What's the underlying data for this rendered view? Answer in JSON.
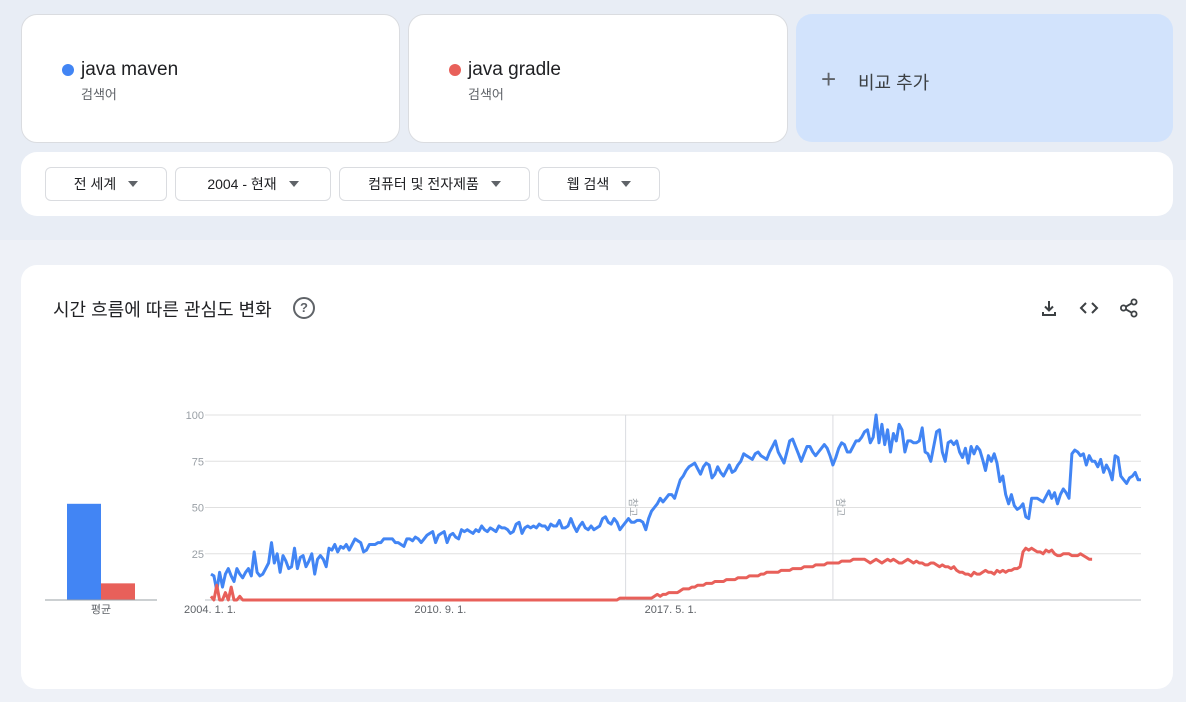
{
  "terms": [
    {
      "name": "java maven",
      "type": "검색어",
      "color": "#4285f4"
    },
    {
      "name": "java gradle",
      "type": "검색어",
      "color": "#e8605a"
    }
  ],
  "add_compare": {
    "icon": "plus-icon",
    "label": "비교 추가"
  },
  "filters": [
    {
      "label": "전 세계"
    },
    {
      "label": "2004 - 현재"
    },
    {
      "label": "컴퓨터 및 전자제품"
    },
    {
      "label": "웹 검색"
    }
  ],
  "chart_section": {
    "title": "시간 흐름에 따른 관심도 변화",
    "icons": [
      "help-icon",
      "download-icon",
      "embed-icon",
      "share-icon"
    ]
  },
  "chart_data": {
    "type": "line",
    "ylim": [
      0,
      100
    ],
    "yticks": [
      "100",
      "75",
      "50",
      "25"
    ],
    "xtick_labels": [
      "2004. 1. 1.",
      "2010. 9. 1.",
      "2017. 5. 1."
    ],
    "note_label": "참고",
    "note_dates": [
      "2016-01",
      "2022-01"
    ],
    "average": {
      "label": "평균",
      "values": [
        52,
        9
      ]
    },
    "series": [
      {
        "name": "java maven",
        "color": "#4285f4",
        "start": "2004-01",
        "values": [
          14,
          13,
          5,
          15,
          7,
          14,
          17,
          13,
          10,
          17,
          14,
          12,
          15,
          17,
          13,
          26,
          15,
          13,
          14,
          17,
          20,
          31,
          20,
          25,
          15,
          24,
          21,
          17,
          18,
          28,
          17,
          23,
          24,
          18,
          21,
          25,
          14,
          22,
          24,
          22,
          18,
          28,
          27,
          30,
          26,
          29,
          28,
          30,
          27,
          30,
          33,
          32,
          31,
          26,
          27,
          30,
          30,
          30,
          31,
          31,
          33,
          33,
          33,
          33,
          31,
          31,
          30,
          29,
          33,
          33,
          32,
          34,
          33,
          31,
          33,
          35,
          36,
          37,
          31,
          35,
          36,
          37,
          31,
          35,
          36,
          34,
          33,
          38,
          37,
          38,
          37,
          36,
          38,
          37,
          40,
          38,
          37,
          39,
          38,
          37,
          40,
          39,
          39,
          38,
          36,
          37,
          41,
          42,
          36,
          39,
          40,
          39,
          40,
          39,
          41,
          40,
          40,
          38,
          41,
          40,
          40,
          43,
          39,
          39,
          40,
          44,
          40,
          37,
          40,
          42,
          39,
          38,
          40,
          38,
          39,
          40,
          44,
          45,
          42,
          41,
          44,
          42,
          38,
          40,
          42,
          44,
          42,
          42,
          43,
          43,
          42,
          38,
          44,
          48,
          50,
          52,
          55,
          53,
          55,
          57,
          57,
          55,
          60,
          65,
          67,
          70,
          72,
          73,
          74,
          71,
          68,
          72,
          74,
          73,
          66,
          68,
          72,
          69,
          67,
          70,
          73,
          69,
          70,
          73,
          75,
          79,
          78,
          77,
          76,
          79,
          80,
          78,
          77,
          76,
          80,
          83,
          86,
          80,
          77,
          74,
          80,
          86,
          87,
          83,
          79,
          75,
          79,
          83,
          83,
          80,
          78,
          80,
          82,
          84,
          82,
          78,
          73,
          77,
          82,
          85,
          84,
          80,
          80,
          83,
          86,
          86,
          88,
          91,
          92,
          85,
          88,
          100,
          85,
          95,
          84,
          92,
          80,
          90,
          86,
          95,
          92,
          80,
          86,
          86,
          85,
          85,
          86,
          93,
          80,
          79,
          75,
          83,
          91,
          92,
          80,
          75,
          85,
          86,
          84,
          86,
          80,
          77,
          82,
          74,
          83,
          79,
          83,
          81,
          76,
          70,
          78,
          75,
          79,
          74,
          64,
          67,
          57,
          52,
          57,
          51,
          49,
          50,
          52,
          45,
          44,
          55,
          55,
          55,
          54,
          53,
          56,
          59,
          55,
          58,
          52,
          57,
          60,
          58,
          55,
          79,
          81,
          80,
          78,
          79,
          73,
          78,
          75,
          75,
          72,
          76,
          69,
          73,
          70,
          65,
          78,
          77,
          67,
          65,
          63,
          66,
          67,
          69,
          65,
          65
        ]
      },
      {
        "name": "java gradle",
        "color": "#e8605a",
        "start": "2004-01",
        "values": [
          2,
          0,
          8,
          0,
          0,
          4,
          0,
          7,
          0,
          0,
          2,
          0,
          0,
          0,
          0,
          0,
          0,
          0,
          0,
          0,
          0,
          0,
          0,
          0,
          0,
          0,
          0,
          0,
          0,
          0,
          0,
          0,
          0,
          0,
          0,
          0,
          0,
          0,
          0,
          0,
          0,
          0,
          0,
          0,
          0,
          0,
          0,
          0,
          0,
          0,
          0,
          0,
          0,
          0,
          0,
          0,
          0,
          0,
          0,
          0,
          0,
          0,
          0,
          0,
          0,
          0,
          0,
          0,
          0,
          0,
          0,
          0,
          0,
          0,
          0,
          0,
          0,
          0,
          0,
          0,
          0,
          0,
          0,
          0,
          0,
          0,
          0,
          0,
          0,
          0,
          0,
          0,
          0,
          0,
          0,
          0,
          0,
          0,
          0,
          0,
          0,
          0,
          0,
          0,
          0,
          0,
          0,
          0,
          0,
          0,
          0,
          0,
          0,
          0,
          0,
          0,
          0,
          0,
          0,
          0,
          0,
          0,
          0,
          0,
          0,
          0,
          0,
          0,
          0,
          0,
          0,
          0,
          0,
          0,
          0,
          0,
          0,
          0,
          0,
          0,
          0,
          0,
          1,
          1,
          1,
          1,
          1,
          1,
          1,
          1,
          1,
          1,
          1,
          1,
          2,
          3,
          2,
          3,
          3,
          4,
          4,
          4,
          4,
          5,
          6,
          6,
          6,
          7,
          7,
          8,
          8,
          8,
          9,
          9,
          9,
          10,
          10,
          10,
          10,
          11,
          11,
          11,
          11,
          12,
          12,
          12,
          12,
          13,
          13,
          13,
          13,
          14,
          14,
          15,
          15,
          15,
          15,
          15,
          16,
          16,
          16,
          16,
          17,
          17,
          17,
          17,
          18,
          18,
          18,
          18,
          19,
          19,
          19,
          19,
          20,
          20,
          20,
          20,
          20,
          21,
          21,
          21,
          21,
          22,
          22,
          22,
          22,
          22,
          21,
          20,
          21,
          22,
          21,
          20,
          21,
          22,
          21,
          22,
          21,
          20,
          20,
          21,
          22,
          21,
          20,
          21,
          20,
          20,
          19,
          19,
          20,
          20,
          19,
          18,
          19,
          18,
          18,
          17,
          18,
          16,
          15,
          15,
          14,
          14,
          13,
          15,
          14,
          14,
          15,
          16,
          15,
          15,
          14,
          16,
          15,
          16,
          15,
          16,
          16,
          17,
          17,
          18,
          26,
          28,
          27,
          28,
          27,
          26,
          26,
          25,
          27,
          26,
          27,
          25,
          24,
          24,
          25,
          25,
          25,
          24,
          24,
          24,
          25,
          24,
          23,
          22,
          22
        ]
      }
    ]
  }
}
